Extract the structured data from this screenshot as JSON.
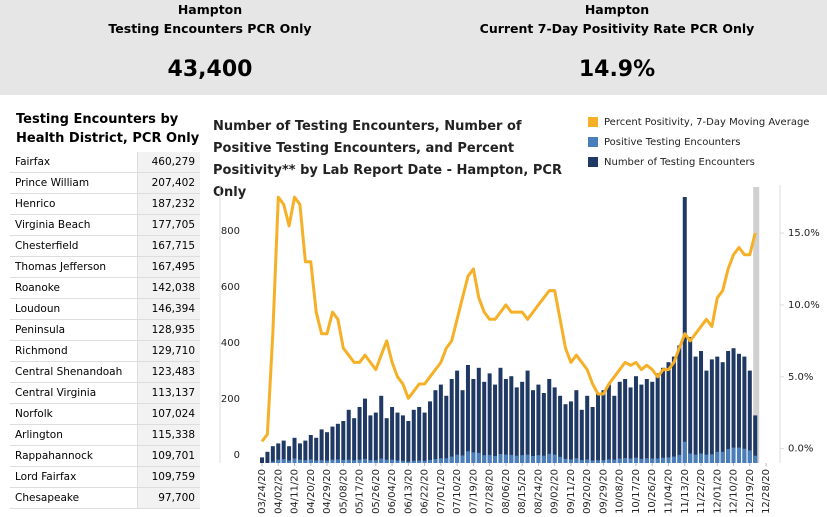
{
  "kpis": [
    {
      "place": "Hampton",
      "label": "Testing Encounters PCR Only",
      "value": "43,400"
    },
    {
      "place": "Hampton",
      "label": "Current 7-Day Positivity Rate PCR Only",
      "value": "14.9%"
    }
  ],
  "district_table": {
    "title": "Testing Encounters by Health District, PCR Only",
    "rows": [
      [
        "Fairfax",
        "460,279"
      ],
      [
        "Prince William",
        "207,402"
      ],
      [
        "Henrico",
        "187,232"
      ],
      [
        "Virginia Beach",
        "177,705"
      ],
      [
        "Chesterfield",
        "167,715"
      ],
      [
        "Thomas Jefferson",
        "167,495"
      ],
      [
        "Roanoke",
        "142,038"
      ],
      [
        "Loudoun",
        "146,394"
      ],
      [
        "Peninsula",
        "128,935"
      ],
      [
        "Richmond",
        "129,710"
      ],
      [
        "Central Shenandoah",
        "123,483"
      ],
      [
        "Central Virginia",
        "113,137"
      ],
      [
        "Norfolk",
        "107,024"
      ],
      [
        "Arlington",
        "115,338"
      ],
      [
        "Rappahannock",
        "109,701"
      ],
      [
        "Lord Fairfax",
        "109,759"
      ],
      [
        "Chesapeake",
        "97,700"
      ]
    ]
  },
  "chart_data": {
    "type": "bar-line",
    "title": "Number of Testing Encounters, Number of Positive Testing Encounters, and Percent Positivity** by Lab Report Date - Hampton, PCR Only",
    "categories": [
      "03/24/20",
      null,
      null,
      "04/02/20",
      null,
      null,
      "04/11/20",
      null,
      null,
      "04/20/20",
      null,
      null,
      "04/29/20",
      null,
      null,
      "05/08/20",
      null,
      null,
      "05/17/20",
      null,
      null,
      "05/26/20",
      null,
      null,
      "06/04/20",
      null,
      null,
      "06/13/20",
      null,
      null,
      "06/22/20",
      null,
      null,
      "07/01/20",
      null,
      null,
      "07/10/20",
      null,
      null,
      "07/19/20",
      null,
      null,
      "07/28/20",
      null,
      null,
      "08/06/20",
      null,
      null,
      "08/15/20",
      null,
      null,
      "08/24/20",
      null,
      null,
      "09/02/20",
      null,
      null,
      "09/11/20",
      null,
      null,
      "09/20/20",
      null,
      null,
      "09/29/20",
      null,
      null,
      "10/08/20",
      null,
      null,
      "10/17/20",
      null,
      null,
      "10/26/20",
      null,
      null,
      "11/04/20",
      null,
      null,
      "11/13/20",
      null,
      null,
      "11/22/20",
      null,
      null,
      "12/01/20",
      null,
      null,
      "12/10/20",
      null,
      null,
      "12/19/20",
      null,
      null,
      "12/28/20"
    ],
    "series": [
      {
        "name": "Percent Positivity, 7-Day Moving Average",
        "color": "#f5b027",
        "axis": "y2",
        "kind": "line",
        "values": [
          0.5,
          1,
          8,
          17.5,
          17,
          15.5,
          17.5,
          17,
          13,
          13,
          9.5,
          8,
          8,
          9.5,
          9,
          7,
          6.5,
          6,
          6,
          6.5,
          6,
          5.5,
          6.5,
          7.5,
          6,
          5,
          4.5,
          3.5,
          4,
          4.5,
          4.5,
          5,
          5.5,
          6,
          7,
          7.5,
          9,
          10.5,
          12,
          12.5,
          10.5,
          9.5,
          9,
          9,
          9.5,
          10,
          9.5,
          9.5,
          9.5,
          9,
          9.5,
          10,
          10.5,
          11,
          11,
          9,
          7,
          6,
          6.5,
          6,
          5.5,
          4.5,
          3.8,
          3.8,
          4.5,
          5,
          5.5,
          6,
          5.8,
          6,
          5.5,
          5.8,
          5.5,
          5,
          5.5,
          5.5,
          6,
          7,
          8,
          7.5,
          8,
          8.5,
          9,
          8.5,
          10.5,
          11,
          12.5,
          13.5,
          14,
          13.5,
          13.5,
          15,
          null,
          null
        ]
      },
      {
        "name": "Positive Testing Encounters",
        "color": "#4a7ebb",
        "kind": "bar",
        "values": [
          0,
          0,
          5,
          12,
          14,
          9,
          16,
          12,
          10,
          13,
          9,
          10,
          9,
          12,
          13,
          11,
          12,
          10,
          12,
          15,
          10,
          10,
          16,
          12,
          12,
          9,
          8,
          5,
          8,
          9,
          8,
          11,
          14,
          17,
          17,
          23,
          30,
          27,
          42,
          38,
          36,
          28,
          29,
          25,
          32,
          30,
          29,
          26,
          28,
          30,
          25,
          28,
          26,
          33,
          30,
          22,
          15,
          13,
          17,
          11,
          13,
          9,
          10,
          10,
          13,
          12,
          16,
          18,
          16,
          19,
          15,
          17,
          16,
          16,
          19,
          20,
          23,
          29,
          76,
          34,
          30,
          34,
          30,
          31,
          40,
          40,
          50,
          55,
          55,
          51,
          45,
          26,
          null,
          null
        ]
      },
      {
        "name": "Number of Testing Encounters",
        "color": "#1f3864",
        "kind": "bar",
        "values": [
          20,
          40,
          60,
          70,
          80,
          60,
          90,
          70,
          80,
          100,
          90,
          120,
          110,
          130,
          140,
          150,
          190,
          160,
          200,
          230,
          170,
          180,
          240,
          160,
          200,
          180,
          170,
          150,
          190,
          200,
          180,
          220,
          260,
          280,
          240,
          300,
          330,
          260,
          350,
          300,
          340,
          290,
          320,
          280,
          340,
          300,
          310,
          270,
          290,
          330,
          260,
          280,
          250,
          300,
          270,
          240,
          210,
          220,
          260,
          190,
          240,
          200,
          250,
          260,
          280,
          240,
          290,
          300,
          270,
          310,
          280,
          300,
          290,
          320,
          340,
          360,
          380,
          420,
          950,
          450,
          380,
          400,
          330,
          370,
          380,
          360,
          400,
          410,
          390,
          380,
          330,
          170,
          null,
          null
        ]
      }
    ],
    "ylim": [
      0,
      975
    ],
    "yticks": [
      0,
      200,
      400,
      600,
      800
    ],
    "y2lim": [
      -1,
      18
    ],
    "y2ticks": [
      {
        "value": 0,
        "label": "0.0%"
      },
      {
        "value": 5,
        "label": "5.0%"
      },
      {
        "value": 10,
        "label": "10.0%"
      },
      {
        "value": 15,
        "label": "15.0%"
      }
    ],
    "legend": "top-right"
  }
}
